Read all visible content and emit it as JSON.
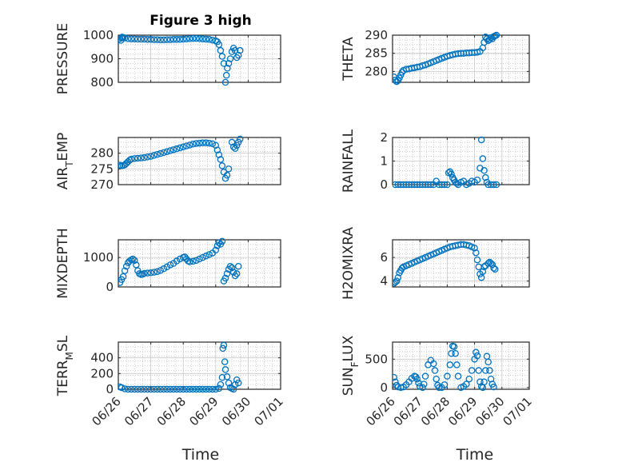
{
  "figure": {
    "title": "Figure 3 high"
  },
  "colors": {
    "marker": "#0072BD",
    "grid": "#b0b0b0",
    "axis": "#262626"
  },
  "chart_data": [
    {
      "id": "pressure",
      "type": "scatter",
      "title": "Figure 3 high",
      "ylabel": "PRESSURE",
      "xlabel": "",
      "xlim": [
        0,
        5
      ],
      "ylim": [
        800,
        1000
      ],
      "yticks": [
        800,
        900,
        1000
      ],
      "ytick_labels": [
        "800",
        "900",
        "1000"
      ],
      "xticks": [
        0,
        1,
        2,
        3,
        4,
        5
      ],
      "xtick_labels": [],
      "grid": true,
      "x": [
        0.05,
        0.08,
        0.1,
        0.12,
        0.15,
        0.2,
        0.3,
        0.4,
        0.5,
        0.6,
        0.7,
        0.8,
        0.9,
        1.0,
        1.1,
        1.2,
        1.3,
        1.4,
        1.5,
        1.6,
        1.7,
        1.8,
        1.9,
        2.0,
        2.1,
        2.2,
        2.3,
        2.4,
        2.5,
        2.6,
        2.7,
        2.8,
        2.9,
        3.0,
        3.05,
        3.1,
        3.15,
        3.2,
        3.25,
        3.3,
        3.33,
        3.36,
        3.4,
        3.45,
        3.5,
        3.55,
        3.6,
        3.65,
        3.7,
        3.75
      ],
      "y": [
        985,
        978,
        988,
        992,
        990,
        988,
        985,
        984,
        984,
        983,
        983,
        983,
        982,
        982,
        981,
        981,
        980,
        980,
        981,
        981,
        982,
        982,
        982,
        983,
        984,
        985,
        986,
        986,
        985,
        984,
        983,
        982,
        979,
        976,
        972,
        960,
        935,
        910,
        880,
        800,
        830,
        860,
        880,
        900,
        930,
        945,
        935,
        905,
        915,
        935
      ]
    },
    {
      "id": "theta",
      "type": "scatter",
      "ylabel": "THETA",
      "xlabel": "",
      "xlim": [
        0,
        5
      ],
      "ylim": [
        277,
        290
      ],
      "yticks": [
        280,
        285,
        290
      ],
      "ytick_labels": [
        "280",
        "285",
        "290"
      ],
      "xticks": [
        0,
        1,
        2,
        3,
        4,
        5
      ],
      "xtick_labels": [],
      "grid": true,
      "x": [
        0.05,
        0.1,
        0.15,
        0.2,
        0.25,
        0.3,
        0.35,
        0.4,
        0.5,
        0.6,
        0.7,
        0.8,
        0.9,
        1.0,
        1.1,
        1.2,
        1.3,
        1.4,
        1.5,
        1.6,
        1.7,
        1.8,
        1.9,
        2.0,
        2.1,
        2.2,
        2.3,
        2.4,
        2.5,
        2.6,
        2.7,
        2.8,
        2.9,
        3.0,
        3.1,
        3.2,
        3.3,
        3.35,
        3.4,
        3.45,
        3.5,
        3.55,
        3.6,
        3.65,
        3.7,
        3.75,
        3.8
      ],
      "y": [
        278.5,
        277.6,
        277.2,
        277.5,
        278.2,
        279.0,
        279.8,
        280.3,
        280.6,
        280.7,
        280.9,
        281.0,
        281.2,
        281.3,
        281.6,
        281.8,
        282.1,
        282.4,
        282.7,
        283.0,
        283.3,
        283.6,
        283.9,
        284.2,
        284.4,
        284.6,
        284.8,
        284.9,
        285.0,
        285.0,
        285.1,
        285.1,
        285.2,
        285.2,
        285.3,
        285.5,
        286.5,
        288.0,
        289.5,
        289.0,
        288.5,
        288.8,
        289.3,
        289.0,
        289.6,
        289.8,
        290.0
      ]
    },
    {
      "id": "air_temp",
      "type": "scatter",
      "ylabel": "AIR_TEMP",
      "ylabel_main": "AIR",
      "ylabel_sub": "T",
      "ylabel_rest": "EMP",
      "xlabel": "",
      "xlim": [
        0,
        5
      ],
      "ylim": [
        270,
        285
      ],
      "yticks": [
        270,
        275,
        280
      ],
      "ytick_labels": [
        "270",
        "275",
        "280"
      ],
      "xticks": [
        0,
        1,
        2,
        3,
        4,
        5
      ],
      "xtick_labels": [],
      "grid": true,
      "x": [
        0.05,
        0.1,
        0.15,
        0.2,
        0.25,
        0.3,
        0.35,
        0.4,
        0.5,
        0.6,
        0.7,
        0.8,
        0.9,
        1.0,
        1.1,
        1.2,
        1.3,
        1.4,
        1.5,
        1.6,
        1.7,
        1.8,
        1.9,
        2.0,
        2.1,
        2.2,
        2.3,
        2.4,
        2.5,
        2.6,
        2.7,
        2.8,
        2.9,
        3.0,
        3.05,
        3.1,
        3.15,
        3.2,
        3.25,
        3.3,
        3.35,
        3.4,
        3.5,
        3.55,
        3.6,
        3.65,
        3.7,
        3.75
      ],
      "y": [
        276.2,
        276.0,
        276.1,
        276.3,
        276.8,
        277.3,
        277.8,
        278.1,
        278.3,
        278.4,
        278.5,
        278.6,
        278.8,
        279.0,
        279.3,
        279.6,
        279.9,
        280.2,
        280.5,
        280.8,
        281.1,
        281.4,
        281.7,
        282.0,
        282.3,
        282.6,
        282.9,
        283.1,
        283.2,
        283.3,
        283.3,
        283.2,
        283.0,
        282.5,
        281.0,
        279.5,
        278.0,
        276.0,
        274.0,
        272.0,
        273.0,
        275.0,
        283.5,
        282.0,
        281.5,
        282.5,
        283.5,
        284.5
      ]
    },
    {
      "id": "rainfall",
      "type": "scatter",
      "ylabel": "RAINFALL",
      "xlabel": "",
      "xlim": [
        0,
        5
      ],
      "ylim": [
        0,
        2
      ],
      "yticks": [
        0,
        1,
        2
      ],
      "ytick_labels": [
        "0",
        "1",
        "2"
      ],
      "xticks": [
        0,
        1,
        2,
        3,
        4,
        5
      ],
      "xtick_labels": [],
      "grid": true,
      "x": [
        0.1,
        0.2,
        0.3,
        0.4,
        0.5,
        0.6,
        0.7,
        0.8,
        0.9,
        1.0,
        1.1,
        1.2,
        1.3,
        1.4,
        1.5,
        1.6,
        1.7,
        1.8,
        1.9,
        2.0,
        2.05,
        2.1,
        2.15,
        2.2,
        2.25,
        2.3,
        2.35,
        2.4,
        2.5,
        2.6,
        2.7,
        2.8,
        2.9,
        3.0,
        3.1,
        3.2,
        3.25,
        3.3,
        3.35,
        3.4,
        3.45,
        3.5,
        3.6,
        3.7,
        3.8
      ],
      "y": [
        0,
        0,
        0,
        0,
        0,
        0,
        0,
        0,
        0,
        0,
        0,
        0,
        0,
        0,
        0,
        0.15,
        0,
        0,
        0,
        0,
        0.5,
        0.55,
        0.45,
        0.3,
        0.2,
        0.1,
        0.05,
        0,
        0.1,
        0.15,
        0,
        0.05,
        0.15,
        0.1,
        0.2,
        0.7,
        1.9,
        1.1,
        0.6,
        0.3,
        0.1,
        0,
        0,
        0,
        0
      ]
    },
    {
      "id": "mixdepth",
      "type": "scatter",
      "ylabel": "MIXDEPTH",
      "xlabel": "",
      "xlim": [
        0,
        5
      ],
      "ylim": [
        0,
        1600
      ],
      "yticks": [
        0,
        1000
      ],
      "ytick_labels": [
        "0",
        "1000"
      ],
      "xticks": [
        0,
        1,
        2,
        3,
        4,
        5
      ],
      "xtick_labels": [],
      "grid": true,
      "x": [
        0.05,
        0.1,
        0.15,
        0.2,
        0.25,
        0.3,
        0.35,
        0.4,
        0.45,
        0.5,
        0.55,
        0.6,
        0.65,
        0.7,
        0.75,
        0.8,
        0.9,
        1.0,
        1.1,
        1.2,
        1.3,
        1.4,
        1.5,
        1.6,
        1.7,
        1.8,
        1.9,
        2.0,
        2.05,
        2.1,
        2.15,
        2.2,
        2.3,
        2.4,
        2.5,
        2.6,
        2.7,
        2.8,
        2.9,
        3.0,
        3.05,
        3.1,
        3.15,
        3.2,
        3.25,
        3.3,
        3.35,
        3.4,
        3.45,
        3.5,
        3.55,
        3.6,
        3.65,
        3.7
      ],
      "y": [
        150,
        250,
        350,
        550,
        700,
        820,
        880,
        920,
        950,
        900,
        750,
        550,
        450,
        420,
        430,
        460,
        470,
        480,
        500,
        520,
        560,
        620,
        680,
        750,
        800,
        880,
        950,
        1000,
        1020,
        950,
        880,
        850,
        870,
        900,
        950,
        1000,
        1050,
        1100,
        1150,
        1250,
        1400,
        1500,
        1450,
        1550,
        200,
        300,
        450,
        600,
        700,
        650,
        500,
        380,
        450,
        700
      ]
    },
    {
      "id": "h2omixra",
      "type": "scatter",
      "ylabel": "H2OMIXRA",
      "xlabel": "",
      "xlim": [
        0,
        5
      ],
      "ylim": [
        3.5,
        7.5
      ],
      "yticks": [
        4,
        6
      ],
      "ytick_labels": [
        "4",
        "6"
      ],
      "xticks": [
        0,
        1,
        2,
        3,
        4,
        5
      ],
      "xtick_labels": [],
      "grid": true,
      "x": [
        0.05,
        0.1,
        0.15,
        0.2,
        0.25,
        0.3,
        0.35,
        0.4,
        0.5,
        0.6,
        0.7,
        0.8,
        0.9,
        1.0,
        1.1,
        1.2,
        1.3,
        1.4,
        1.5,
        1.6,
        1.7,
        1.8,
        1.9,
        2.0,
        2.1,
        2.2,
        2.3,
        2.4,
        2.5,
        2.6,
        2.7,
        2.8,
        2.9,
        3.0,
        3.05,
        3.1,
        3.15,
        3.2,
        3.25,
        3.3,
        3.35,
        3.4,
        3.5,
        3.55,
        3.6,
        3.65,
        3.7,
        3.75
      ],
      "y": [
        3.8,
        3.9,
        4.0,
        4.3,
        4.7,
        4.9,
        5.1,
        5.2,
        5.3,
        5.4,
        5.5,
        5.6,
        5.7,
        5.8,
        5.9,
        6.0,
        6.1,
        6.2,
        6.3,
        6.4,
        6.5,
        6.6,
        6.7,
        6.8,
        6.9,
        6.95,
        7.0,
        7.05,
        7.1,
        7.1,
        7.05,
        7.0,
        6.9,
        6.8,
        6.4,
        5.8,
        5.2,
        4.6,
        4.3,
        4.8,
        5.2,
        5.3,
        5.5,
        5.6,
        5.5,
        5.4,
        5.1,
        5.0
      ]
    },
    {
      "id": "terr_msl",
      "type": "scatter",
      "ylabel": "TERR_MSL",
      "ylabel_main": "TERR",
      "ylabel_sub": "M",
      "ylabel_rest": "SL",
      "xlabel": "Time",
      "xlim": [
        0,
        5
      ],
      "ylim": [
        0,
        600
      ],
      "yticks": [
        0,
        200,
        400
      ],
      "ytick_labels": [
        "0",
        "200",
        "400"
      ],
      "xticks": [
        0,
        1,
        2,
        3,
        4,
        5
      ],
      "xtick_labels": [
        "06/26",
        "06/27",
        "06/28",
        "06/29",
        "06/30",
        "07/01"
      ],
      "grid": true,
      "x": [
        0.05,
        0.1,
        0.2,
        0.3,
        0.4,
        0.5,
        0.6,
        0.7,
        0.8,
        0.9,
        1.0,
        1.1,
        1.2,
        1.3,
        1.4,
        1.5,
        1.6,
        1.7,
        1.8,
        1.9,
        2.0,
        2.1,
        2.2,
        2.3,
        2.4,
        2.5,
        2.6,
        2.7,
        2.8,
        2.9,
        3.0,
        3.1,
        3.15,
        3.2,
        3.22,
        3.25,
        3.28,
        3.3,
        3.35,
        3.4,
        3.45,
        3.5,
        3.55,
        3.6,
        3.65,
        3.7
      ],
      "y": [
        30,
        20,
        5,
        0,
        0,
        0,
        0,
        0,
        0,
        0,
        0,
        0,
        0,
        0,
        0,
        0,
        0,
        0,
        0,
        0,
        0,
        0,
        0,
        0,
        0,
        0,
        0,
        0,
        0,
        0,
        0,
        10,
        60,
        150,
        520,
        560,
        350,
        250,
        160,
        80,
        20,
        10,
        0,
        60,
        120,
        80
      ]
    },
    {
      "id": "sun_flux",
      "type": "scatter",
      "ylabel": "SUN_FLUX",
      "ylabel_main": "SUN",
      "ylabel_sub": "F",
      "ylabel_rest": "LUX",
      "xlabel": "Time",
      "xlim": [
        0,
        5
      ],
      "ylim": [
        -30,
        800
      ],
      "yticks": [
        0,
        500
      ],
      "ytick_labels": [
        "0",
        "500"
      ],
      "xticks": [
        0,
        1,
        2,
        3,
        4,
        5
      ],
      "xtick_labels": [
        "06/26",
        "06/27",
        "06/28",
        "06/29",
        "06/30",
        "07/01"
      ],
      "grid": true,
      "x": [
        0.05,
        0.1,
        0.15,
        0.2,
        0.3,
        0.4,
        0.5,
        0.6,
        0.7,
        0.8,
        0.85,
        0.9,
        0.95,
        1.0,
        1.1,
        1.15,
        1.2,
        1.3,
        1.4,
        1.5,
        1.55,
        1.6,
        1.65,
        1.7,
        1.8,
        1.9,
        2.0,
        2.1,
        2.15,
        2.2,
        2.25,
        2.3,
        2.35,
        2.4,
        2.5,
        2.6,
        2.7,
        2.8,
        2.9,
        3.0,
        3.05,
        3.1,
        3.15,
        3.2,
        3.25,
        3.3,
        3.35,
        3.4,
        3.45,
        3.5,
        3.55,
        3.6,
        3.65,
        3.7
      ],
      "y": [
        180,
        100,
        40,
        10,
        0,
        10,
        50,
        100,
        160,
        200,
        190,
        150,
        80,
        20,
        0,
        60,
        200,
        400,
        480,
        420,
        300,
        150,
        40,
        0,
        0,
        50,
        200,
        400,
        600,
        730,
        720,
        600,
        400,
        200,
        0,
        20,
        60,
        150,
        300,
        500,
        620,
        560,
        300,
        100,
        20,
        0,
        100,
        300,
        550,
        450,
        300,
        150,
        60,
        10
      ]
    }
  ]
}
